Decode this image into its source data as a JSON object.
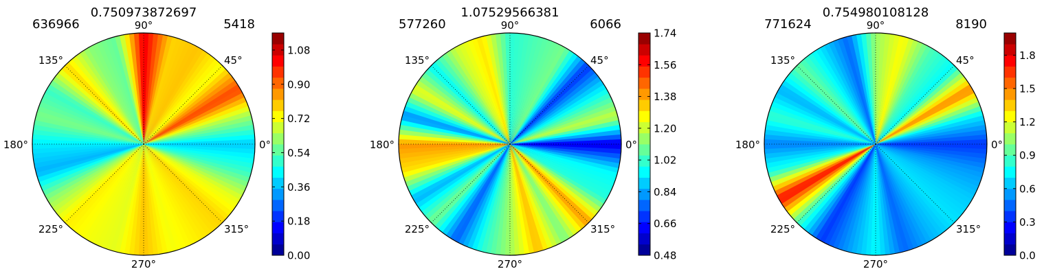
{
  "chart_data": [
    {
      "type": "heatmap",
      "projection": "polar",
      "title": "0.750973872697",
      "label_left": "636966",
      "label_right": "5418",
      "angle_ticks": [
        "0°",
        "45°",
        "90°",
        "135°",
        "180°",
        "225°",
        "270°",
        "315°"
      ],
      "colorbar": {
        "ticks": [
          "0.00",
          "0.18",
          "0.36",
          "0.54",
          "0.72",
          "0.90",
          "1.08"
        ],
        "range": [
          0.0,
          1.17
        ]
      },
      "rays": [
        {
          "angle": 0,
          "value": 0.38
        },
        {
          "angle": 15,
          "value": 0.62
        },
        {
          "angle": 30,
          "value": 0.95
        },
        {
          "angle": 45,
          "value": 0.72
        },
        {
          "angle": 60,
          "value": 0.8
        },
        {
          "angle": 75,
          "value": 0.78
        },
        {
          "angle": 90,
          "value": 1.05
        },
        {
          "angle": 105,
          "value": 0.55
        },
        {
          "angle": 120,
          "value": 0.6
        },
        {
          "angle": 135,
          "value": 0.78
        },
        {
          "angle": 150,
          "value": 0.5
        },
        {
          "angle": 165,
          "value": 0.58
        },
        {
          "angle": 180,
          "value": 0.42
        },
        {
          "angle": 195,
          "value": 0.35
        },
        {
          "angle": 210,
          "value": 0.6
        },
        {
          "angle": 225,
          "value": 0.75
        },
        {
          "angle": 240,
          "value": 0.72
        },
        {
          "angle": 255,
          "value": 0.7
        },
        {
          "angle": 270,
          "value": 0.8
        },
        {
          "angle": 285,
          "value": 0.72
        },
        {
          "angle": 300,
          "value": 0.75
        },
        {
          "angle": 315,
          "value": 0.78
        },
        {
          "angle": 330,
          "value": 0.7
        },
        {
          "angle": 345,
          "value": 0.5
        }
      ]
    },
    {
      "type": "heatmap",
      "projection": "polar",
      "title": "1.07529566381",
      "label_left": "577260",
      "label_right": "6066",
      "angle_ticks": [
        "0°",
        "45°",
        "90°",
        "135°",
        "180°",
        "225°",
        "270°",
        "315°"
      ],
      "colorbar": {
        "ticks": [
          "0.48",
          "0.66",
          "0.84",
          "1.02",
          "1.20",
          "1.38",
          "1.56",
          "1.74"
        ],
        "range": [
          0.48,
          1.74
        ]
      },
      "rays": [
        {
          "angle": 0,
          "value": 0.6
        },
        {
          "angle": 15,
          "value": 1.2
        },
        {
          "angle": 30,
          "value": 0.95
        },
        {
          "angle": 45,
          "value": 0.7
        },
        {
          "angle": 60,
          "value": 1.1
        },
        {
          "angle": 75,
          "value": 1.05
        },
        {
          "angle": 90,
          "value": 1.0
        },
        {
          "angle": 105,
          "value": 1.3
        },
        {
          "angle": 120,
          "value": 1.2
        },
        {
          "angle": 135,
          "value": 0.95
        },
        {
          "angle": 150,
          "value": 1.25
        },
        {
          "angle": 165,
          "value": 0.8
        },
        {
          "angle": 180,
          "value": 1.4
        },
        {
          "angle": 195,
          "value": 1.3
        },
        {
          "angle": 210,
          "value": 0.85
        },
        {
          "angle": 225,
          "value": 1.1
        },
        {
          "angle": 240,
          "value": 0.75
        },
        {
          "angle": 255,
          "value": 1.0
        },
        {
          "angle": 270,
          "value": 1.15
        },
        {
          "angle": 285,
          "value": 1.35
        },
        {
          "angle": 300,
          "value": 1.1
        },
        {
          "angle": 315,
          "value": 1.4
        },
        {
          "angle": 330,
          "value": 1.0
        },
        {
          "angle": 345,
          "value": 0.95
        }
      ]
    },
    {
      "type": "heatmap",
      "projection": "polar",
      "title": "0.754980108128",
      "label_left": "771624",
      "label_right": "8190",
      "angle_ticks": [
        "0°",
        "45°",
        "90°",
        "135°",
        "180°",
        "225°",
        "270°",
        "315°"
      ],
      "colorbar": {
        "ticks": [
          "0.0",
          "0.3",
          "0.6",
          "0.9",
          "1.2",
          "1.5",
          "1.8"
        ],
        "range": [
          0.0,
          2.0
        ]
      },
      "rays": [
        {
          "angle": 0,
          "value": 0.35
        },
        {
          "angle": 15,
          "value": 0.7
        },
        {
          "angle": 30,
          "value": 1.5
        },
        {
          "angle": 45,
          "value": 0.75
        },
        {
          "angle": 60,
          "value": 0.9
        },
        {
          "angle": 75,
          "value": 1.25
        },
        {
          "angle": 90,
          "value": 1.05
        },
        {
          "angle": 105,
          "value": 0.45
        },
        {
          "angle": 120,
          "value": 0.7
        },
        {
          "angle": 135,
          "value": 0.95
        },
        {
          "angle": 150,
          "value": 0.6
        },
        {
          "angle": 165,
          "value": 0.85
        },
        {
          "angle": 180,
          "value": 0.5
        },
        {
          "angle": 195,
          "value": 0.8
        },
        {
          "angle": 210,
          "value": 1.75
        },
        {
          "angle": 225,
          "value": 0.9
        },
        {
          "angle": 240,
          "value": 0.35
        },
        {
          "angle": 255,
          "value": 0.55
        },
        {
          "angle": 270,
          "value": 0.75
        },
        {
          "angle": 285,
          "value": 0.45
        },
        {
          "angle": 300,
          "value": 0.6
        },
        {
          "angle": 315,
          "value": 0.7
        },
        {
          "angle": 330,
          "value": 0.65
        },
        {
          "angle": 345,
          "value": 0.55
        }
      ]
    }
  ]
}
